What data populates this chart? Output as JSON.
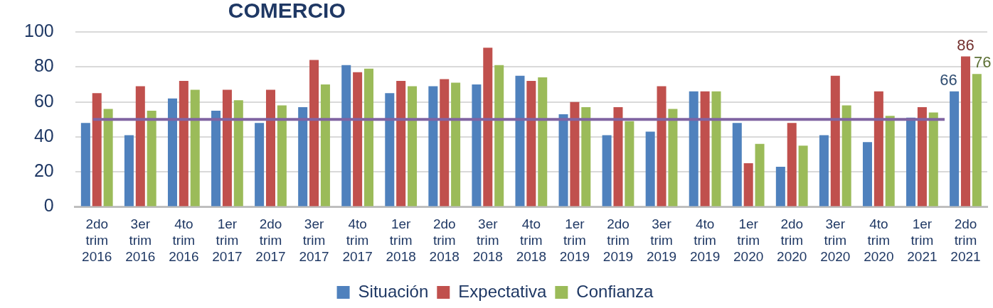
{
  "chart_data": {
    "type": "bar",
    "title": "COMERCIO",
    "categories": [
      "2do trim 2016",
      "3er trim 2016",
      "4to trim 2016",
      "1er trim 2017",
      "2do trim 2017",
      "3er trim 2017",
      "4to trim 2017",
      "1er trim 2018",
      "2do trim 2018",
      "3er trim 2018",
      "4to trim 2018",
      "1er trim 2019",
      "2do trim 2019",
      "3er trim 2019",
      "4to trim 2019",
      "1er trim 2020",
      "2do trim 2020",
      "3er trim 2020",
      "4to trim 2020",
      "1er trim 2021",
      "2do trim 2021"
    ],
    "series": [
      {
        "name": "Situación",
        "color": "#4f81bd",
        "values": [
          48,
          41,
          62,
          55,
          48,
          57,
          81,
          65,
          69,
          70,
          75,
          53,
          41,
          43,
          66,
          48,
          23,
          41,
          37,
          51,
          66
        ],
        "value_labels": [
          null,
          null,
          null,
          null,
          null,
          null,
          null,
          null,
          null,
          null,
          null,
          null,
          null,
          null,
          null,
          null,
          null,
          null,
          null,
          null,
          "66"
        ]
      },
      {
        "name": "Expectativa",
        "color": "#c0504d",
        "values": [
          65,
          69,
          72,
          67,
          67,
          84,
          77,
          72,
          73,
          91,
          72,
          60,
          57,
          69,
          66,
          25,
          48,
          75,
          66,
          57,
          86
        ],
        "value_labels": [
          null,
          null,
          null,
          null,
          null,
          null,
          null,
          null,
          null,
          null,
          null,
          null,
          null,
          null,
          null,
          null,
          null,
          null,
          null,
          null,
          "86"
        ]
      },
      {
        "name": "Confianza",
        "color": "#9bbb59",
        "values": [
          56,
          55,
          67,
          61,
          58,
          70,
          79,
          69,
          71,
          81,
          74,
          57,
          49,
          56,
          66,
          36,
          35,
          58,
          52,
          54,
          76
        ],
        "value_labels": [
          null,
          null,
          null,
          null,
          null,
          null,
          null,
          null,
          null,
          null,
          null,
          null,
          null,
          null,
          null,
          null,
          null,
          null,
          null,
          null,
          "76"
        ]
      }
    ],
    "ylim": [
      0,
      100
    ],
    "yticks": [
      0,
      20,
      40,
      60,
      80,
      100
    ],
    "grid": "y",
    "legend": "bottom",
    "ref_lines": [
      {
        "axis": "y",
        "value": 50,
        "color": "#8064a2"
      }
    ]
  }
}
